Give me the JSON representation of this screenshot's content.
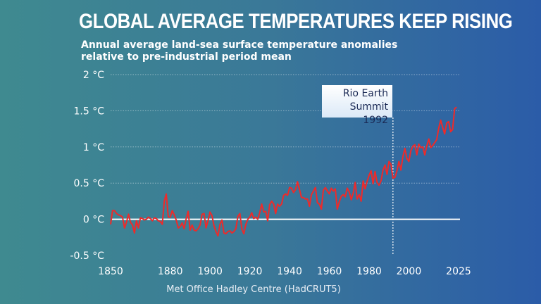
{
  "title": "GLOBAL AVERAGE TEMPERATURES KEEP RISING",
  "subtitle": "Annual average land-sea surface temperature anomalies relative to pre-industrial period mean",
  "source": "Met Office Hadley Centre (HadCRUT5)",
  "colors": {
    "line": "#ee2a2a",
    "background_left": "#3f8a90",
    "background_right": "#2b5ca8"
  },
  "chart_data": {
    "type": "line",
    "title": "GLOBAL AVERAGE TEMPERATURES KEEP RISING",
    "xlim": [
      1850,
      2025
    ],
    "ylim": [
      -0.5,
      2
    ],
    "grid": true,
    "x_ticks": [
      1850,
      1880,
      1900,
      1920,
      1940,
      1960,
      1980,
      2000,
      2025
    ],
    "y_ticks": [
      2,
      1.5,
      1,
      0.5,
      0,
      -0.5
    ],
    "y_tick_labels": [
      "2 °C",
      "1.5 °C",
      "1 °C",
      "0.5 °C",
      "0 °C",
      "-0.5 °C"
    ],
    "x_start": 1850,
    "values": [
      -0.07,
      0.12,
      0.12,
      0.08,
      0.06,
      0.05,
      0.03,
      -0.12,
      -0.04,
      0.07,
      -0.04,
      -0.08,
      -0.19,
      -0.02,
      -0.12,
      0.02,
      0.01,
      -0.01,
      0.0,
      0.03,
      0.01,
      -0.02,
      0.02,
      0.01,
      -0.02,
      -0.03,
      -0.07,
      0.25,
      0.35,
      0.03,
      0.03,
      0.12,
      0.06,
      -0.01,
      -0.12,
      -0.1,
      -0.05,
      -0.13,
      0.01,
      0.11,
      -0.15,
      -0.08,
      -0.15,
      -0.16,
      -0.13,
      -0.08,
      0.07,
      0.08,
      -0.12,
      -0.02,
      0.1,
      0.05,
      -0.09,
      -0.17,
      -0.23,
      -0.07,
      -0.01,
      -0.19,
      -0.2,
      -0.17,
      -0.16,
      -0.19,
      -0.17,
      -0.13,
      0.04,
      0.08,
      -0.13,
      -0.2,
      -0.07,
      0.0,
      0.03,
      0.09,
      0.01,
      0.03,
      0.0,
      0.09,
      0.21,
      0.1,
      0.11,
      -0.02,
      0.2,
      0.25,
      0.21,
      0.08,
      0.21,
      0.18,
      0.21,
      0.33,
      0.35,
      0.33,
      0.44,
      0.43,
      0.37,
      0.41,
      0.52,
      0.41,
      0.3,
      0.3,
      0.28,
      0.28,
      0.18,
      0.34,
      0.39,
      0.44,
      0.23,
      0.21,
      0.14,
      0.4,
      0.44,
      0.39,
      0.35,
      0.43,
      0.39,
      0.42,
      0.14,
      0.24,
      0.32,
      0.34,
      0.31,
      0.43,
      0.38,
      0.27,
      0.36,
      0.51,
      0.28,
      0.34,
      0.25,
      0.53,
      0.42,
      0.52,
      0.61,
      0.67,
      0.49,
      0.66,
      0.51,
      0.47,
      0.53,
      0.68,
      0.75,
      0.62,
      0.8,
      0.76,
      0.57,
      0.58,
      0.67,
      0.8,
      0.68,
      0.87,
      0.98,
      0.84,
      0.8,
      0.95,
      1.01,
      1.03,
      0.89,
      1.04,
      0.99,
      1.0,
      0.89,
      1.01,
      1.11,
      0.99,
      1.02,
      1.06,
      1.1,
      1.26,
      1.37,
      1.27,
      1.18,
      1.33,
      1.35,
      1.21,
      1.24,
      1.53,
      1.55
    ],
    "annotations": [
      {
        "x": 1992,
        "text_line1": "Rio Earth",
        "text_line2": "Summit 1992"
      }
    ]
  }
}
